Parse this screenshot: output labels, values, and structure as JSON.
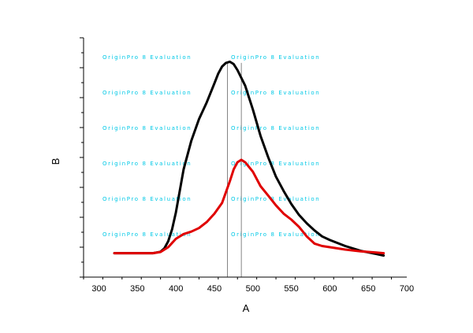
{
  "chart_data": {
    "type": "line",
    "xlabel": "A",
    "ylabel": "B",
    "xlim": [
      280,
      700
    ],
    "xticks": [
      300,
      350,
      400,
      450,
      500,
      550,
      600,
      650,
      700
    ],
    "ylim": [
      0,
      100
    ],
    "y_tick_labels_shown": false,
    "grid": false,
    "legend": "none",
    "series": [
      {
        "color": "#000000",
        "x": [
          320,
          370,
          380,
          385,
          390,
          395,
          400,
          405,
          410,
          420,
          430,
          440,
          450,
          455,
          460,
          465,
          470,
          475,
          480,
          490,
          500,
          510,
          520,
          530,
          540,
          550,
          560,
          570,
          580,
          590,
          600,
          620,
          640,
          660,
          670
        ],
        "y": [
          10,
          10,
          10.6,
          12,
          15,
          20,
          27,
          36,
          45,
          57,
          66,
          73,
          81,
          85,
          88,
          89.5,
          90,
          89,
          86.5,
          80,
          70,
          59,
          50,
          42,
          36,
          30.5,
          26,
          22.5,
          19.5,
          17,
          15.5,
          13,
          11,
          9.7,
          9
        ]
      },
      {
        "color": "#e00000",
        "x": [
          320,
          350,
          370,
          380,
          390,
          400,
          410,
          420,
          430,
          440,
          450,
          460,
          470,
          475,
          480,
          485,
          490,
          500,
          510,
          520,
          530,
          540,
          550,
          560,
          570,
          580,
          590,
          600,
          620,
          640,
          660,
          670
        ],
        "y": [
          10,
          10,
          10,
          10.5,
          12.5,
          16,
          18,
          19,
          20.5,
          23,
          26.5,
          31,
          40,
          45,
          48,
          49,
          48,
          44,
          38,
          34,
          30,
          26.5,
          24,
          21,
          17,
          14,
          13,
          12.5,
          11.5,
          10.8,
          10.3,
          10
        ]
      }
    ],
    "vertical_lines": [
      {
        "x": 467,
        "color": "#666666"
      },
      {
        "x": 485,
        "color": "#666666"
      }
    ]
  },
  "watermark": "OriginPro 8 Evaluation"
}
